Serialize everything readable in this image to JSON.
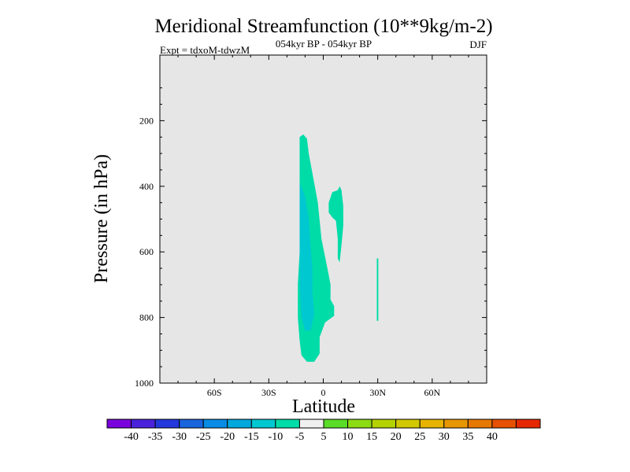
{
  "title": "Meridional Streamfunction (10**9kg/m-2)",
  "subtitle": "054kyr BP - 054kyr BP",
  "experiment": "Expt = tdxoM-tdwzM",
  "season": "DJF",
  "chart_data": {
    "type": "contour",
    "xlabel": "Latitude",
    "ylabel": "Pressure (in hPa)",
    "xlim": [
      -90,
      90
    ],
    "ylim": [
      1000,
      0
    ],
    "x_ticks": [
      {
        "value": -60,
        "label": "60S"
      },
      {
        "value": -30,
        "label": "30S"
      },
      {
        "value": 0,
        "label": "0"
      },
      {
        "value": 30,
        "label": "30N"
      },
      {
        "value": 60,
        "label": "60N"
      }
    ],
    "y_ticks": [
      {
        "value": 200,
        "label": "200"
      },
      {
        "value": 400,
        "label": "400"
      },
      {
        "value": 600,
        "label": "600"
      },
      {
        "value": 800,
        "label": "800"
      },
      {
        "value": 1000,
        "label": "1000"
      }
    ],
    "background_fill": "#e6e6e6",
    "regions": [
      {
        "level": "-10 to -5",
        "color": "#00dca8",
        "points": [
          [
            -13,
            250
          ],
          [
            -11,
            242
          ],
          [
            -9,
            255
          ],
          [
            -8,
            300
          ],
          [
            -6,
            360
          ],
          [
            -3,
            450
          ],
          [
            -1,
            560
          ],
          [
            3,
            670
          ],
          [
            4,
            700
          ],
          [
            4,
            745
          ],
          [
            6,
            765
          ],
          [
            6,
            795
          ],
          [
            1,
            815
          ],
          [
            -2,
            860
          ],
          [
            -2,
            910
          ],
          [
            -5,
            935
          ],
          [
            -9,
            935
          ],
          [
            -12,
            915
          ],
          [
            -13,
            870
          ],
          [
            -14,
            800
          ],
          [
            -14,
            700
          ],
          [
            -13,
            600
          ],
          [
            -13,
            500
          ],
          [
            -13,
            400
          ],
          [
            -13,
            300
          ]
        ]
      },
      {
        "level": "-15 to -10",
        "color": "#00c8d0",
        "points": [
          [
            -13,
            390
          ],
          [
            -10,
            430
          ],
          [
            -8,
            500
          ],
          [
            -7,
            580
          ],
          [
            -6,
            650
          ],
          [
            -6,
            720
          ],
          [
            -5,
            790
          ],
          [
            -7,
            840
          ],
          [
            -10,
            840
          ],
          [
            -12,
            800
          ],
          [
            -13,
            700
          ],
          [
            -13,
            600
          ],
          [
            -13,
            480
          ]
        ]
      },
      {
        "level": "-10 to -5",
        "color": "#00dca8",
        "points": [
          [
            3,
            450
          ],
          [
            5,
            418
          ],
          [
            8,
            412
          ],
          [
            9,
            400
          ],
          [
            10,
            412
          ],
          [
            11,
            460
          ],
          [
            11,
            520
          ],
          [
            10,
            580
          ],
          [
            9,
            632
          ],
          [
            8,
            620
          ],
          [
            8,
            560
          ],
          [
            7,
            505
          ],
          [
            5,
            495
          ],
          [
            3,
            480
          ]
        ]
      },
      {
        "level": "-10 to -5",
        "color": "#00dca8",
        "points": [
          [
            29.5,
            620
          ],
          [
            30.3,
            620
          ],
          [
            30.3,
            810
          ],
          [
            29.5,
            810
          ]
        ]
      }
    ],
    "colorbar": {
      "colors": [
        "#7a00dc",
        "#4a22dc",
        "#2238dc",
        "#1a64dc",
        "#0a8ce6",
        "#00a8dc",
        "#00c8d0",
        "#00dca8",
        "#f0f0f0",
        "#5adc28",
        "#8cdc14",
        "#b4d200",
        "#d2c800",
        "#e6b400",
        "#e69600",
        "#e67800",
        "#e65000",
        "#e62800"
      ],
      "labels": [
        "-40",
        "-35",
        "-30",
        "-25",
        "-20",
        "-15",
        "-10",
        "-5",
        "5",
        "10",
        "15",
        "20",
        "25",
        "30",
        "35",
        "40"
      ]
    }
  }
}
